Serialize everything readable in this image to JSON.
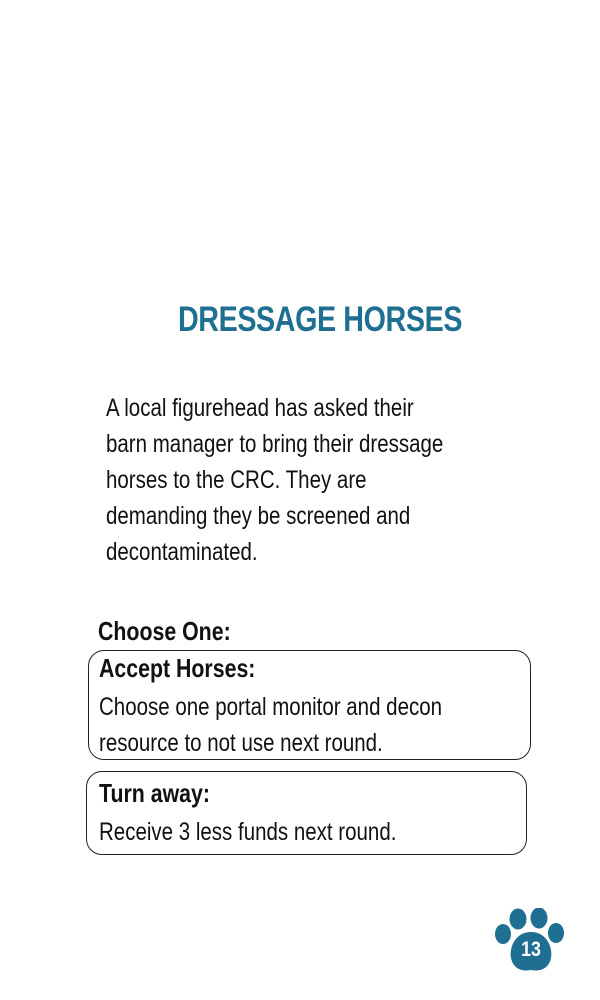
{
  "card": {
    "title": "DRESSAGE HORSES",
    "description": "A local figurehead has asked their\nbarn manager to bring their dressage\nhorses to the CRC. They are\ndemanding they be screened and\ndecontaminated.",
    "choose_label": "Choose One:",
    "options": [
      {
        "title": "Accept Horses:",
        "body": "Choose one portal monitor  and decon\nresource to not use next round."
      },
      {
        "title": "Turn away:",
        "body": "Receive 3 less funds next round."
      }
    ],
    "page_number": "13",
    "page_icon": "paw-icon"
  },
  "colors": {
    "title": "#1f6f92",
    "paw": "#1f6f92",
    "text": "#111111",
    "background": "#ffffff"
  }
}
